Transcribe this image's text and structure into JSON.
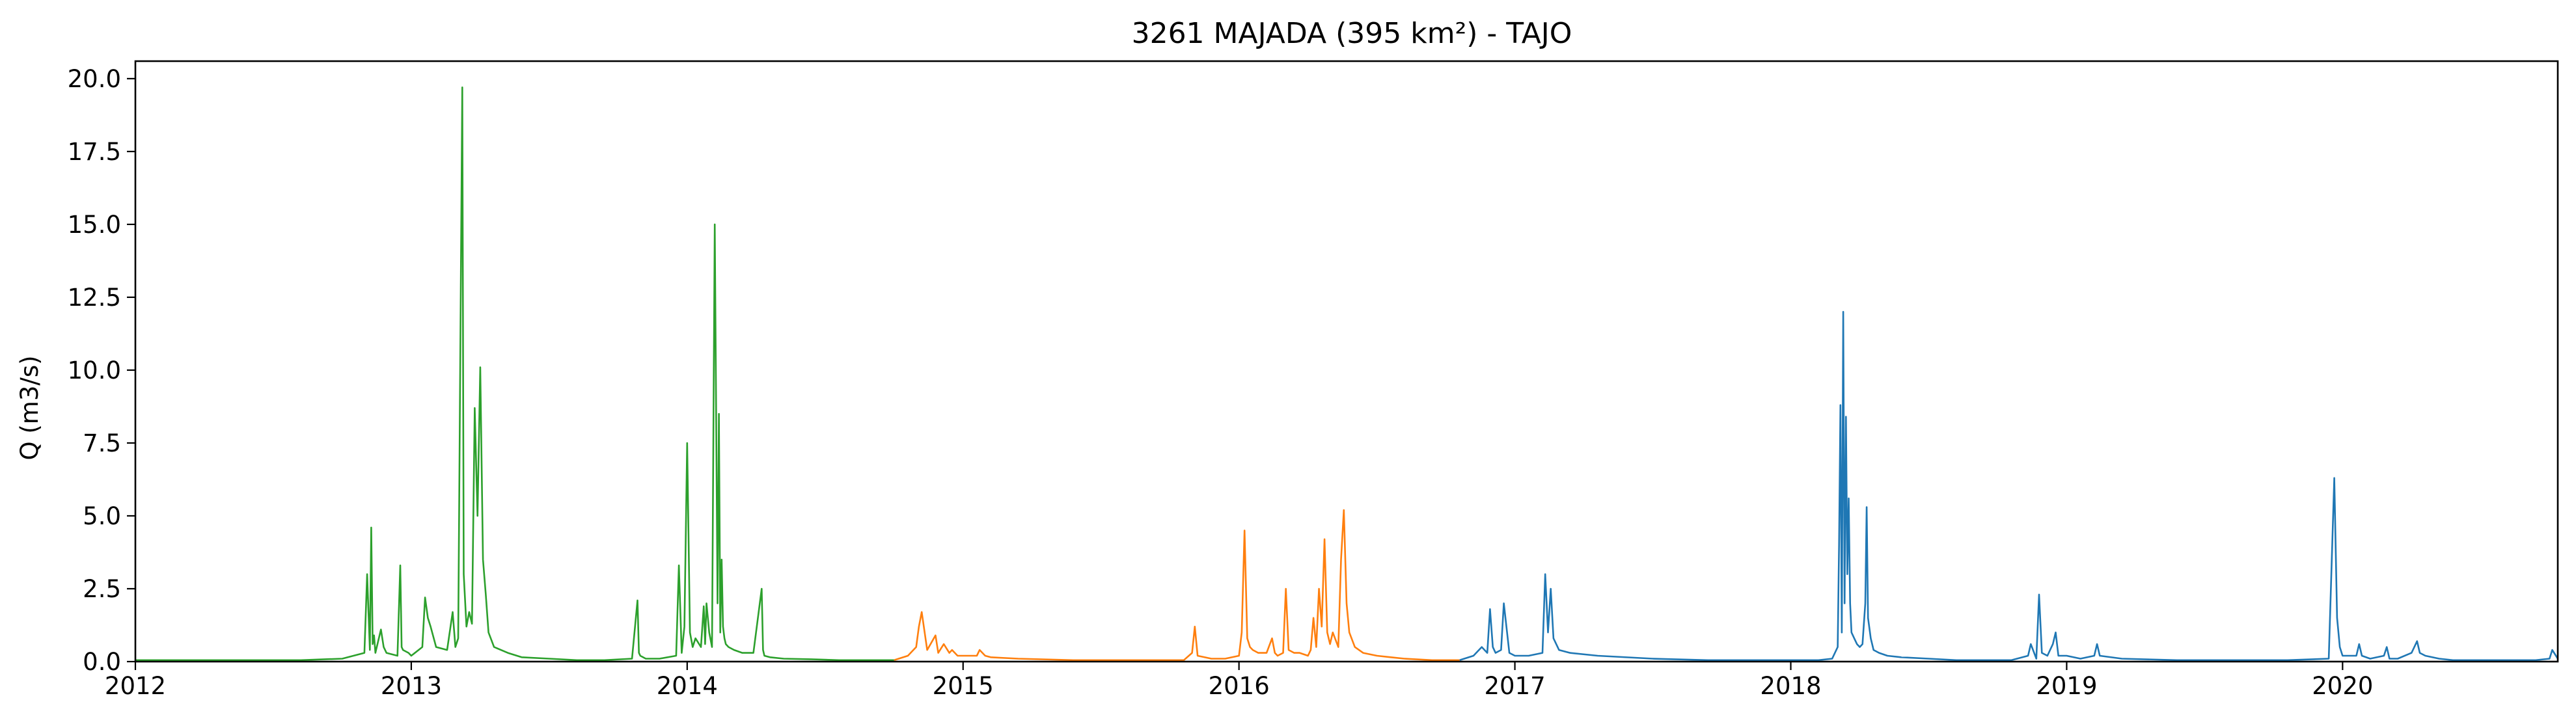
{
  "chart_data": {
    "type": "line",
    "title": "3261 MAJADA (395 km²) - TAJO",
    "xlabel": "",
    "ylabel": "Q (m3/s)",
    "x_unit": "year",
    "xlim": [
      2012.0,
      2020.78
    ],
    "ylim": [
      0,
      20.6
    ],
    "x_ticks": [
      2012,
      2013,
      2014,
      2015,
      2016,
      2017,
      2018,
      2019,
      2020
    ],
    "x_tick_labels": [
      "2012",
      "2013",
      "2014",
      "2015",
      "2016",
      "2017",
      "2018",
      "2019",
      "2020"
    ],
    "y_ticks": [
      0.0,
      2.5,
      5.0,
      7.5,
      10.0,
      12.5,
      15.0,
      17.5,
      20.0
    ],
    "y_tick_labels": [
      "0.0",
      "2.5",
      "5.0",
      "7.5",
      "10.0",
      "12.5",
      "15.0",
      "17.5",
      "20.0"
    ],
    "grid": false,
    "legend": "none",
    "series": [
      {
        "color": "#2ca02c",
        "x": [
          2012.0,
          2012.2,
          2012.4,
          2012.6,
          2012.75,
          2012.83,
          2012.84,
          2012.85,
          2012.855,
          2012.86,
          2012.865,
          2012.87,
          2012.89,
          2012.9,
          2012.91,
          2012.95,
          2012.96,
          2012.965,
          2012.97,
          2012.99,
          2013.0,
          2013.04,
          2013.05,
          2013.06,
          2013.07,
          2013.09,
          2013.13,
          2013.15,
          2013.16,
          2013.17,
          2013.185,
          2013.19,
          2013.2,
          2013.21,
          2013.22,
          2013.23,
          2013.24,
          2013.25,
          2013.26,
          2013.27,
          2013.28,
          2013.3,
          2013.35,
          2013.4,
          2013.5,
          2013.6,
          2013.7,
          2013.8,
          2013.82,
          2013.825,
          2013.83,
          2013.85,
          2013.9,
          2013.96,
          2013.97,
          2013.98,
          2013.99,
          2014.0,
          2014.01,
          2014.02,
          2014.03,
          2014.05,
          2014.06,
          2014.065,
          2014.07,
          2014.08,
          2014.09,
          2014.1,
          2014.11,
          2014.115,
          2014.12,
          2014.125,
          2014.13,
          2014.135,
          2014.14,
          2014.15,
          2014.17,
          2014.2,
          2014.24,
          2014.27,
          2014.275,
          2014.28,
          2014.3,
          2014.35,
          2014.45,
          2014.55,
          2014.65,
          2014.75
        ],
        "y": [
          0.05,
          0.05,
          0.05,
          0.05,
          0.1,
          0.3,
          3.0,
          0.4,
          4.6,
          0.6,
          0.9,
          0.3,
          1.1,
          0.5,
          0.3,
          0.2,
          3.3,
          0.5,
          0.4,
          0.3,
          0.2,
          0.5,
          2.2,
          1.5,
          1.2,
          0.5,
          0.4,
          1.7,
          0.5,
          0.8,
          19.7,
          3.0,
          1.2,
          1.7,
          1.3,
          8.7,
          5.0,
          10.1,
          3.5,
          2.3,
          1.0,
          0.5,
          0.3,
          0.15,
          0.1,
          0.05,
          0.05,
          0.1,
          2.1,
          0.3,
          0.2,
          0.1,
          0.1,
          0.2,
          3.3,
          0.3,
          1.2,
          7.5,
          1.0,
          0.5,
          0.8,
          0.5,
          1.9,
          0.6,
          2.0,
          1.0,
          0.5,
          15.0,
          2.0,
          8.5,
          1.0,
          3.5,
          1.2,
          0.8,
          0.6,
          0.5,
          0.4,
          0.3,
          0.3,
          2.5,
          0.4,
          0.2,
          0.15,
          0.1,
          0.08,
          0.05,
          0.05,
          0.05
        ]
      },
      {
        "color": "#ff7f0e",
        "x": [
          2014.75,
          2014.8,
          2014.83,
          2014.84,
          2014.85,
          2014.87,
          2014.9,
          2014.91,
          2014.93,
          2014.95,
          2014.96,
          2014.98,
          2015.0,
          2015.05,
          2015.06,
          2015.08,
          2015.1,
          2015.2,
          2015.4,
          2015.6,
          2015.8,
          2015.83,
          2015.84,
          2015.85,
          2015.9,
          2015.95,
          2016.0,
          2016.01,
          2016.02,
          2016.03,
          2016.04,
          2016.05,
          2016.07,
          2016.1,
          2016.12,
          2016.13,
          2016.14,
          2016.16,
          2016.17,
          2016.18,
          2016.2,
          2016.22,
          2016.25,
          2016.26,
          2016.27,
          2016.28,
          2016.29,
          2016.3,
          2016.31,
          2016.32,
          2016.33,
          2016.34,
          2016.36,
          2016.37,
          2016.38,
          2016.39,
          2016.4,
          2016.42,
          2016.45,
          2016.5,
          2016.55,
          2016.6,
          2016.7,
          2016.8
        ],
        "y": [
          0.05,
          0.2,
          0.5,
          1.2,
          1.7,
          0.4,
          0.9,
          0.3,
          0.6,
          0.3,
          0.4,
          0.2,
          0.2,
          0.2,
          0.4,
          0.2,
          0.15,
          0.1,
          0.05,
          0.05,
          0.05,
          0.3,
          1.2,
          0.2,
          0.1,
          0.1,
          0.2,
          1.0,
          4.5,
          0.8,
          0.5,
          0.4,
          0.3,
          0.3,
          0.8,
          0.3,
          0.2,
          0.3,
          2.5,
          0.4,
          0.3,
          0.3,
          0.2,
          0.4,
          1.5,
          0.5,
          2.5,
          1.2,
          4.2,
          1.0,
          0.6,
          1.0,
          0.5,
          3.5,
          5.2,
          2.0,
          1.0,
          0.5,
          0.3,
          0.2,
          0.15,
          0.1,
          0.05,
          0.05
        ]
      },
      {
        "color": "#1f77b4",
        "x": [
          2016.8,
          2016.85,
          2016.88,
          2016.9,
          2016.91,
          2016.92,
          2016.93,
          2016.95,
          2016.96,
          2016.98,
          2017.0,
          2017.05,
          2017.1,
          2017.11,
          2017.12,
          2017.13,
          2017.14,
          2017.16,
          2017.2,
          2017.3,
          2017.5,
          2017.7,
          2017.9,
          2018.0,
          2018.1,
          2018.15,
          2018.17,
          2018.175,
          2018.18,
          2018.185,
          2018.19,
          2018.195,
          2018.2,
          2018.205,
          2018.21,
          2018.215,
          2018.22,
          2018.23,
          2018.24,
          2018.25,
          2018.26,
          2018.27,
          2018.275,
          2018.28,
          2018.29,
          2018.3,
          2018.32,
          2018.35,
          2018.4,
          2018.5,
          2018.6,
          2018.7,
          2018.8,
          2018.86,
          2018.87,
          2018.89,
          2018.9,
          2018.91,
          2018.93,
          2018.95,
          2018.96,
          2018.97,
          2019.0,
          2019.05,
          2019.1,
          2019.11,
          2019.12,
          2019.2,
          2019.4,
          2019.6,
          2019.8,
          2019.95,
          2019.97,
          2019.98,
          2019.99,
          2020.0,
          2020.05,
          2020.06,
          2020.07,
          2020.1,
          2020.15,
          2020.16,
          2020.17,
          2020.2,
          2020.25,
          2020.26,
          2020.27,
          2020.28,
          2020.3,
          2020.35,
          2020.4,
          2020.5,
          2020.6,
          2020.7,
          2020.75,
          2020.76,
          2020.78
        ],
        "y": [
          0.05,
          0.2,
          0.5,
          0.3,
          1.8,
          0.5,
          0.3,
          0.4,
          2.0,
          0.3,
          0.2,
          0.2,
          0.3,
          3.0,
          1.0,
          2.5,
          0.8,
          0.4,
          0.3,
          0.2,
          0.1,
          0.05,
          0.05,
          0.05,
          0.05,
          0.1,
          0.5,
          4.0,
          8.8,
          1.0,
          12.0,
          2.0,
          8.4,
          3.0,
          5.6,
          2.0,
          1.0,
          0.8,
          0.6,
          0.5,
          0.6,
          2.0,
          5.3,
          1.5,
          0.8,
          0.4,
          0.3,
          0.2,
          0.15,
          0.1,
          0.05,
          0.05,
          0.05,
          0.2,
          0.6,
          0.1,
          2.3,
          0.3,
          0.2,
          0.6,
          1.0,
          0.2,
          0.2,
          0.1,
          0.2,
          0.6,
          0.2,
          0.1,
          0.05,
          0.05,
          0.05,
          0.1,
          6.3,
          1.5,
          0.5,
          0.2,
          0.2,
          0.6,
          0.2,
          0.1,
          0.2,
          0.5,
          0.1,
          0.1,
          0.3,
          0.5,
          0.7,
          0.3,
          0.2,
          0.1,
          0.05,
          0.05,
          0.05,
          0.05,
          0.1,
          0.4,
          0.1
        ]
      }
    ]
  }
}
